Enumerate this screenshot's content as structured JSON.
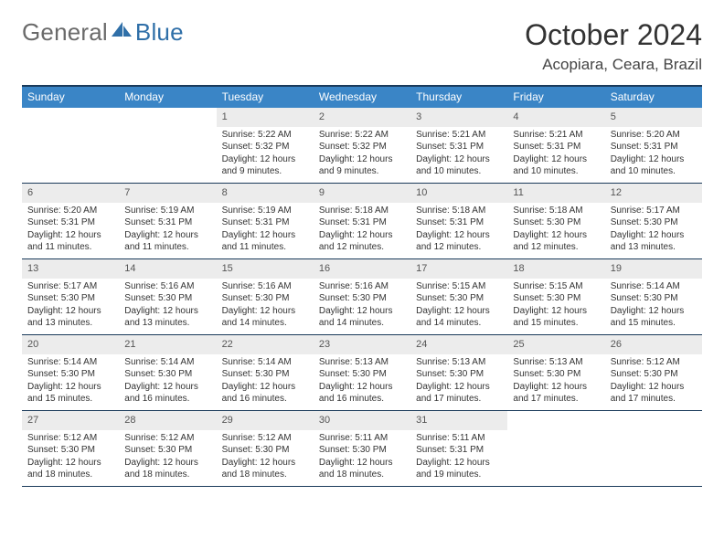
{
  "brand": {
    "general": "General",
    "blue": "Blue"
  },
  "title": {
    "month": "October 2024",
    "location": "Acopiara, Ceara, Brazil"
  },
  "colors": {
    "header_bg": "#3a85c6",
    "header_text": "#ffffff",
    "daynum_bg": "#ececec",
    "border": "#1a3a5a",
    "logo_gray": "#6a6a6a",
    "logo_blue": "#2f6fa8"
  },
  "weekdays": [
    "Sunday",
    "Monday",
    "Tuesday",
    "Wednesday",
    "Thursday",
    "Friday",
    "Saturday"
  ],
  "weeks": [
    [
      {
        "n": "",
        "sr": "",
        "ss": "",
        "dl": ""
      },
      {
        "n": "",
        "sr": "",
        "ss": "",
        "dl": ""
      },
      {
        "n": "1",
        "sr": "Sunrise: 5:22 AM",
        "ss": "Sunset: 5:32 PM",
        "dl": "Daylight: 12 hours and 9 minutes."
      },
      {
        "n": "2",
        "sr": "Sunrise: 5:22 AM",
        "ss": "Sunset: 5:32 PM",
        "dl": "Daylight: 12 hours and 9 minutes."
      },
      {
        "n": "3",
        "sr": "Sunrise: 5:21 AM",
        "ss": "Sunset: 5:31 PM",
        "dl": "Daylight: 12 hours and 10 minutes."
      },
      {
        "n": "4",
        "sr": "Sunrise: 5:21 AM",
        "ss": "Sunset: 5:31 PM",
        "dl": "Daylight: 12 hours and 10 minutes."
      },
      {
        "n": "5",
        "sr": "Sunrise: 5:20 AM",
        "ss": "Sunset: 5:31 PM",
        "dl": "Daylight: 12 hours and 10 minutes."
      }
    ],
    [
      {
        "n": "6",
        "sr": "Sunrise: 5:20 AM",
        "ss": "Sunset: 5:31 PM",
        "dl": "Daylight: 12 hours and 11 minutes."
      },
      {
        "n": "7",
        "sr": "Sunrise: 5:19 AM",
        "ss": "Sunset: 5:31 PM",
        "dl": "Daylight: 12 hours and 11 minutes."
      },
      {
        "n": "8",
        "sr": "Sunrise: 5:19 AM",
        "ss": "Sunset: 5:31 PM",
        "dl": "Daylight: 12 hours and 11 minutes."
      },
      {
        "n": "9",
        "sr": "Sunrise: 5:18 AM",
        "ss": "Sunset: 5:31 PM",
        "dl": "Daylight: 12 hours and 12 minutes."
      },
      {
        "n": "10",
        "sr": "Sunrise: 5:18 AM",
        "ss": "Sunset: 5:31 PM",
        "dl": "Daylight: 12 hours and 12 minutes."
      },
      {
        "n": "11",
        "sr": "Sunrise: 5:18 AM",
        "ss": "Sunset: 5:30 PM",
        "dl": "Daylight: 12 hours and 12 minutes."
      },
      {
        "n": "12",
        "sr": "Sunrise: 5:17 AM",
        "ss": "Sunset: 5:30 PM",
        "dl": "Daylight: 12 hours and 13 minutes."
      }
    ],
    [
      {
        "n": "13",
        "sr": "Sunrise: 5:17 AM",
        "ss": "Sunset: 5:30 PM",
        "dl": "Daylight: 12 hours and 13 minutes."
      },
      {
        "n": "14",
        "sr": "Sunrise: 5:16 AM",
        "ss": "Sunset: 5:30 PM",
        "dl": "Daylight: 12 hours and 13 minutes."
      },
      {
        "n": "15",
        "sr": "Sunrise: 5:16 AM",
        "ss": "Sunset: 5:30 PM",
        "dl": "Daylight: 12 hours and 14 minutes."
      },
      {
        "n": "16",
        "sr": "Sunrise: 5:16 AM",
        "ss": "Sunset: 5:30 PM",
        "dl": "Daylight: 12 hours and 14 minutes."
      },
      {
        "n": "17",
        "sr": "Sunrise: 5:15 AM",
        "ss": "Sunset: 5:30 PM",
        "dl": "Daylight: 12 hours and 14 minutes."
      },
      {
        "n": "18",
        "sr": "Sunrise: 5:15 AM",
        "ss": "Sunset: 5:30 PM",
        "dl": "Daylight: 12 hours and 15 minutes."
      },
      {
        "n": "19",
        "sr": "Sunrise: 5:14 AM",
        "ss": "Sunset: 5:30 PM",
        "dl": "Daylight: 12 hours and 15 minutes."
      }
    ],
    [
      {
        "n": "20",
        "sr": "Sunrise: 5:14 AM",
        "ss": "Sunset: 5:30 PM",
        "dl": "Daylight: 12 hours and 15 minutes."
      },
      {
        "n": "21",
        "sr": "Sunrise: 5:14 AM",
        "ss": "Sunset: 5:30 PM",
        "dl": "Daylight: 12 hours and 16 minutes."
      },
      {
        "n": "22",
        "sr": "Sunrise: 5:14 AM",
        "ss": "Sunset: 5:30 PM",
        "dl": "Daylight: 12 hours and 16 minutes."
      },
      {
        "n": "23",
        "sr": "Sunrise: 5:13 AM",
        "ss": "Sunset: 5:30 PM",
        "dl": "Daylight: 12 hours and 16 minutes."
      },
      {
        "n": "24",
        "sr": "Sunrise: 5:13 AM",
        "ss": "Sunset: 5:30 PM",
        "dl": "Daylight: 12 hours and 17 minutes."
      },
      {
        "n": "25",
        "sr": "Sunrise: 5:13 AM",
        "ss": "Sunset: 5:30 PM",
        "dl": "Daylight: 12 hours and 17 minutes."
      },
      {
        "n": "26",
        "sr": "Sunrise: 5:12 AM",
        "ss": "Sunset: 5:30 PM",
        "dl": "Daylight: 12 hours and 17 minutes."
      }
    ],
    [
      {
        "n": "27",
        "sr": "Sunrise: 5:12 AM",
        "ss": "Sunset: 5:30 PM",
        "dl": "Daylight: 12 hours and 18 minutes."
      },
      {
        "n": "28",
        "sr": "Sunrise: 5:12 AM",
        "ss": "Sunset: 5:30 PM",
        "dl": "Daylight: 12 hours and 18 minutes."
      },
      {
        "n": "29",
        "sr": "Sunrise: 5:12 AM",
        "ss": "Sunset: 5:30 PM",
        "dl": "Daylight: 12 hours and 18 minutes."
      },
      {
        "n": "30",
        "sr": "Sunrise: 5:11 AM",
        "ss": "Sunset: 5:30 PM",
        "dl": "Daylight: 12 hours and 18 minutes."
      },
      {
        "n": "31",
        "sr": "Sunrise: 5:11 AM",
        "ss": "Sunset: 5:31 PM",
        "dl": "Daylight: 12 hours and 19 minutes."
      },
      {
        "n": "",
        "sr": "",
        "ss": "",
        "dl": ""
      },
      {
        "n": "",
        "sr": "",
        "ss": "",
        "dl": ""
      }
    ]
  ]
}
